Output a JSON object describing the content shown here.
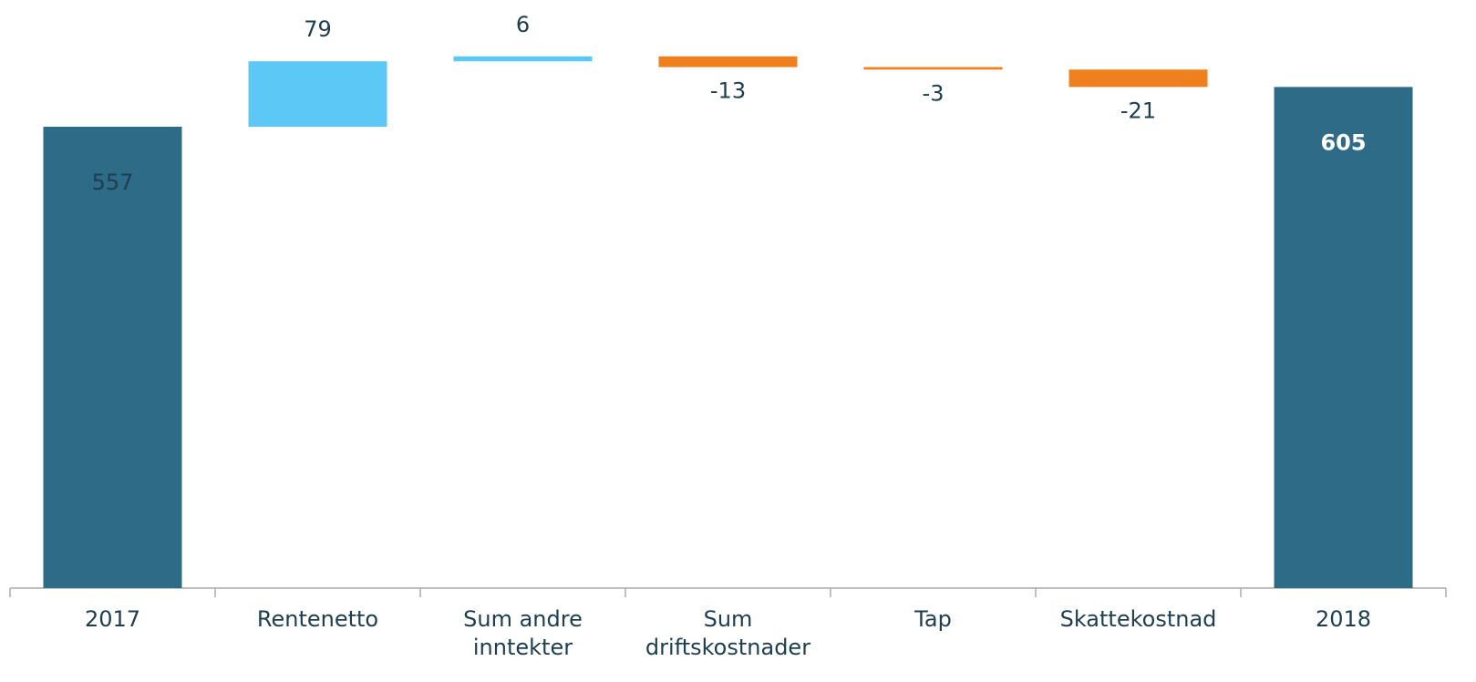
{
  "chart_data": {
    "type": "waterfall",
    "categories": [
      "2017",
      "Rentenetto",
      "Sum andre inntekter",
      "Sum driftskostnader",
      "Tap",
      "Skattekostnad",
      "2018"
    ],
    "values": [
      557,
      79,
      6,
      -13,
      -3,
      -21,
      605
    ],
    "colors": {
      "total": "#2e6b87",
      "increase": "#5bc8f5",
      "decrease": "#f07f1d"
    },
    "ylim": [
      0,
      710
    ]
  }
}
